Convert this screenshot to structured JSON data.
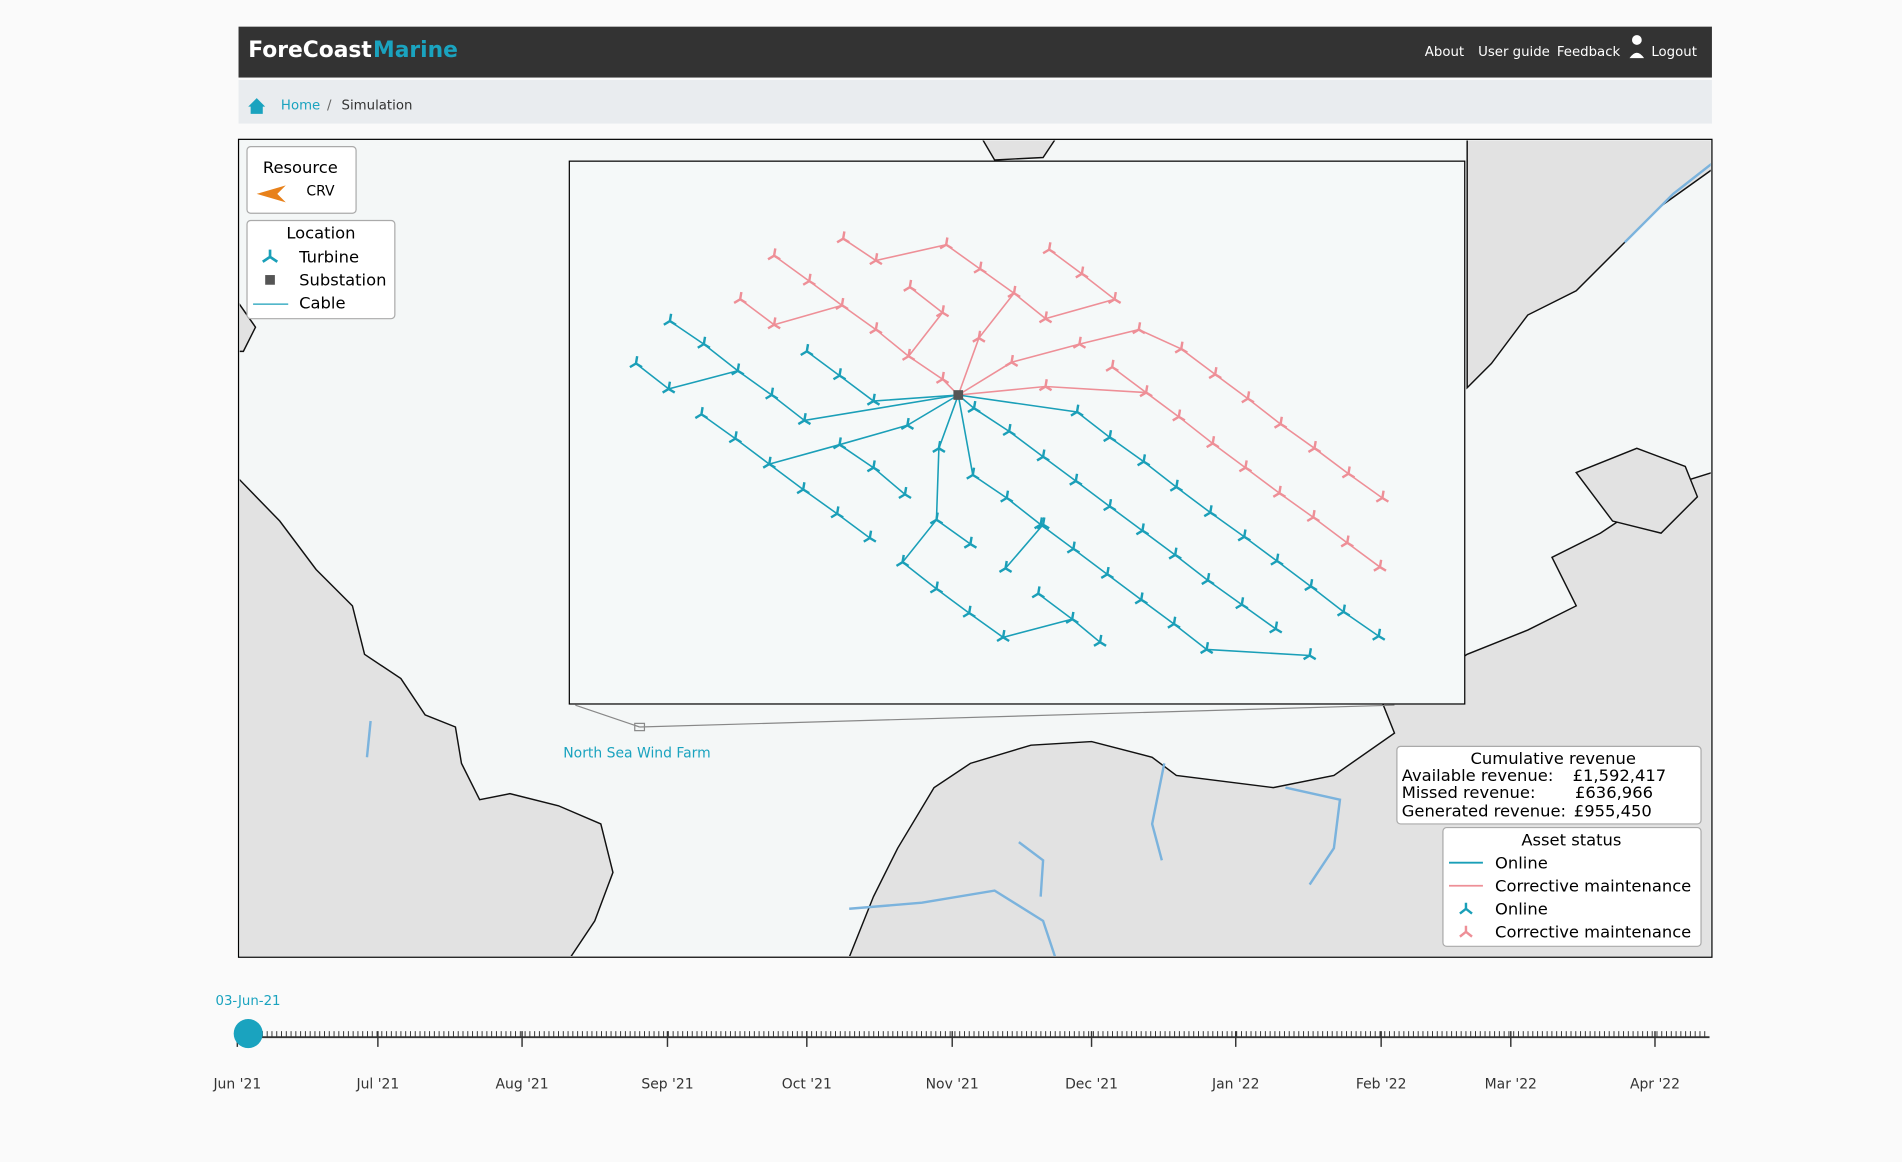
{
  "header": {
    "brand": "ForeCoast",
    "brand_accent": "Marine",
    "nav": [
      "About",
      "User guide",
      "Feedback",
      "Logout"
    ]
  },
  "breadcrumb": [
    "Home",
    "Simulation"
  ],
  "map": {
    "resource_legend": {
      "title": "Resource",
      "items": [
        "CRV"
      ]
    },
    "location_legend": {
      "title": "Location",
      "items": [
        "Turbine",
        "Substation",
        "Cable"
      ]
    },
    "site_label": "North Sea Wind Farm",
    "revenue": {
      "title": "Cumulative revenue",
      "rows": [
        [
          "Available revenue:",
          "£1,592,417"
        ],
        [
          "Missed revenue:",
          "£636,966"
        ],
        [
          "Generated revenue:",
          "£955,450"
        ]
      ]
    },
    "asset_status": {
      "title": "Asset status",
      "items": [
        "Online",
        "Corrective maintenance",
        "Online",
        "Corrective maintenance"
      ]
    }
  },
  "timeline": {
    "current": "03-Jun-21",
    "months": [
      "Jun '21",
      "Jul '21",
      "Aug '21",
      "Sep '21",
      "Oct '21",
      "Nov '21",
      "Dec '21",
      "Jan '22",
      "Feb '22",
      "Mar '22",
      "Apr '22"
    ]
  }
}
